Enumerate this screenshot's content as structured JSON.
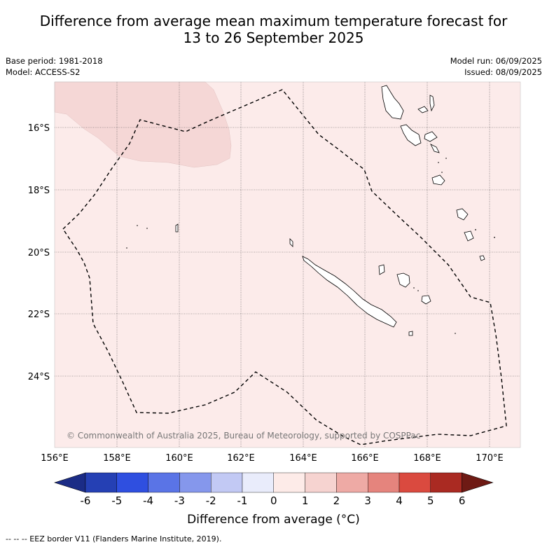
{
  "title_line1": "Difference from average mean maximum temperature forecast for",
  "title_line2": "13 to 26 September 2025",
  "meta_left": [
    "Base period: 1981-2018",
    "Model: ACCESS-S2"
  ],
  "meta_right": [
    "Model run: 06/09/2025",
    "Issued: 08/09/2025"
  ],
  "copyright": "© Commonwealth of Australia 2025, Bureau of Meteorology, supported by COSPPac",
  "map": {
    "lon_ticks": [
      "156°E",
      "158°E",
      "160°E",
      "162°E",
      "164°E",
      "166°E",
      "168°E",
      "170°E"
    ],
    "lat_ticks": [
      "16°S",
      "18°S",
      "20°S",
      "22°S",
      "24°S"
    ],
    "background_color": "#fcebea",
    "anomaly_region_color": "#f5d7d6"
  },
  "colorbar": {
    "label": "Difference from average (°C)",
    "tick_labels": [
      "-6",
      "-5",
      "-4",
      "-3",
      "-2",
      "-1",
      "0",
      "1",
      "2",
      "3",
      "4",
      "5",
      "6"
    ],
    "colors": [
      "#1b2c86",
      "#2540b4",
      "#2f4fe0",
      "#5a74e6",
      "#8597ec",
      "#c2c9f4",
      "#e9ecfb",
      "#fdebe8",
      "#f6d3d0",
      "#eeaaa5",
      "#e5847d",
      "#da4a3f",
      "#aa2a22",
      "#6e1a14"
    ]
  },
  "footer": "--  --  -- EEZ border V11 (Flanders Marine Institute, 2019)."
}
